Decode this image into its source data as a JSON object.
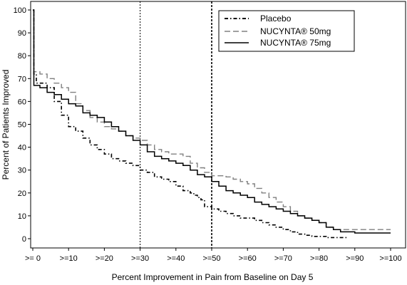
{
  "chart_data": {
    "type": "line",
    "title": "",
    "xlabel": "Percent Improvement in Pain from Baseline on Day 5",
    "ylabel": "Percent of Patients Improved",
    "xlim": [
      0,
      100
    ],
    "ylim": [
      0,
      100
    ],
    "x_ticks": [
      0,
      10,
      20,
      30,
      40,
      50,
      60,
      70,
      80,
      90,
      100
    ],
    "x_tick_labels": [
      ">= 0",
      ">=10",
      ">=20",
      ">=30",
      ">=40",
      ">=50",
      ">=60",
      ">=70",
      ">=80",
      ">=90",
      ">=100"
    ],
    "y_ticks": [
      0,
      10,
      20,
      30,
      40,
      50,
      60,
      70,
      80,
      90,
      100
    ],
    "y_tick_labels": [
      "0",
      "10",
      "20",
      "30",
      "40",
      "50",
      "60",
      "70",
      "80",
      "90",
      "100"
    ],
    "reference_lines_x": [
      30,
      50
    ],
    "grid": false,
    "legend_position": "top-right",
    "series": [
      {
        "name": "Placebo",
        "style": "dash-dot",
        "color": "#000000",
        "points": [
          [
            0,
            100
          ],
          [
            0.3,
            72
          ],
          [
            1,
            68
          ],
          [
            4,
            66
          ],
          [
            6,
            60
          ],
          [
            8,
            54
          ],
          [
            10,
            49
          ],
          [
            12,
            47
          ],
          [
            14,
            44
          ],
          [
            16,
            41
          ],
          [
            18,
            39
          ],
          [
            20,
            37
          ],
          [
            22,
            35
          ],
          [
            24,
            34
          ],
          [
            26,
            33
          ],
          [
            28,
            32
          ],
          [
            30,
            30
          ],
          [
            32,
            29
          ],
          [
            34,
            27
          ],
          [
            36,
            26
          ],
          [
            38,
            25
          ],
          [
            40,
            23
          ],
          [
            42,
            21
          ],
          [
            44,
            20
          ],
          [
            45,
            19
          ],
          [
            46,
            18
          ],
          [
            47,
            17
          ],
          [
            48,
            14
          ],
          [
            50,
            13
          ],
          [
            52,
            12
          ],
          [
            54,
            11
          ],
          [
            56,
            10
          ],
          [
            58,
            9
          ],
          [
            60,
            9
          ],
          [
            62,
            8
          ],
          [
            64,
            7
          ],
          [
            66,
            6
          ],
          [
            68,
            5
          ],
          [
            70,
            4
          ],
          [
            72,
            3
          ],
          [
            74,
            2
          ],
          [
            76,
            1.5
          ],
          [
            78,
            1
          ],
          [
            82,
            0.5
          ],
          [
            85,
            0.5
          ],
          [
            88,
            0.3
          ]
        ]
      },
      {
        "name": "NUCYNTA® 50mg",
        "style": "dashed",
        "color": "#808080",
        "points": [
          [
            0,
            100
          ],
          [
            0.3,
            73
          ],
          [
            2,
            72
          ],
          [
            4,
            70
          ],
          [
            6,
            68
          ],
          [
            8,
            66
          ],
          [
            10,
            64
          ],
          [
            12,
            59
          ],
          [
            14,
            56
          ],
          [
            16,
            53
          ],
          [
            18,
            51
          ],
          [
            20,
            49
          ],
          [
            22,
            48
          ],
          [
            24,
            47
          ],
          [
            26,
            45
          ],
          [
            28,
            44
          ],
          [
            30,
            43
          ],
          [
            32,
            41
          ],
          [
            34,
            39
          ],
          [
            36,
            38
          ],
          [
            38,
            37
          ],
          [
            40,
            37
          ],
          [
            42,
            36
          ],
          [
            44,
            33
          ],
          [
            46,
            31
          ],
          [
            48,
            29
          ],
          [
            50,
            27.5
          ],
          [
            52,
            27.5
          ],
          [
            54,
            27
          ],
          [
            56,
            26
          ],
          [
            58,
            25
          ],
          [
            60,
            24
          ],
          [
            62,
            22
          ],
          [
            64,
            20
          ],
          [
            66,
            18
          ],
          [
            68,
            16
          ],
          [
            70,
            14
          ],
          [
            72,
            12
          ],
          [
            74,
            10
          ],
          [
            76,
            9
          ],
          [
            78,
            8
          ],
          [
            80,
            7
          ],
          [
            82,
            5
          ],
          [
            84,
            4
          ],
          [
            86,
            4
          ],
          [
            88,
            4
          ],
          [
            90,
            4
          ],
          [
            100,
            4
          ]
        ]
      },
      {
        "name": "NUCYNTA® 75mg",
        "style": "solid",
        "color": "#000000",
        "points": [
          [
            0,
            100
          ],
          [
            0.3,
            67
          ],
          [
            2,
            66
          ],
          [
            4,
            64
          ],
          [
            6,
            63
          ],
          [
            8,
            61
          ],
          [
            10,
            59
          ],
          [
            12,
            58
          ],
          [
            14,
            55
          ],
          [
            16,
            54
          ],
          [
            18,
            53
          ],
          [
            20,
            51
          ],
          [
            22,
            49
          ],
          [
            24,
            47
          ],
          [
            26,
            45
          ],
          [
            28,
            43
          ],
          [
            30,
            41
          ],
          [
            32,
            38
          ],
          [
            34,
            36
          ],
          [
            36,
            35
          ],
          [
            38,
            34
          ],
          [
            40,
            33
          ],
          [
            42,
            32
          ],
          [
            44,
            30
          ],
          [
            46,
            28
          ],
          [
            48,
            27
          ],
          [
            50,
            25
          ],
          [
            52,
            23
          ],
          [
            54,
            21
          ],
          [
            56,
            20
          ],
          [
            58,
            19
          ],
          [
            60,
            18
          ],
          [
            62,
            16
          ],
          [
            64,
            15
          ],
          [
            66,
            14
          ],
          [
            68,
            13
          ],
          [
            70,
            12
          ],
          [
            72,
            11
          ],
          [
            74,
            10
          ],
          [
            76,
            9
          ],
          [
            78,
            8
          ],
          [
            80,
            7
          ],
          [
            82,
            5
          ],
          [
            84,
            4
          ],
          [
            86,
            3
          ],
          [
            88,
            3
          ],
          [
            90,
            2.5
          ],
          [
            100,
            2.5
          ]
        ]
      }
    ]
  }
}
